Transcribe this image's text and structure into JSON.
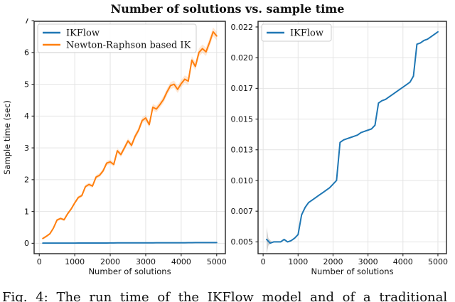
{
  "figure": {
    "title": "Number of solutions vs. sample time"
  },
  "caption": {
    "text": "Fig. 4: The run time of the IKFlow model and of a traditional"
  },
  "style": {
    "ikflow_color": "#1f77b4",
    "newton_color": "#ff7f0e",
    "grid_color": "#e4e4e4",
    "spine_color": "#222222",
    "text_color": "#111111",
    "orange_band_color": "rgba(255,127,14,0.18)",
    "gray_band_color": "rgba(120,120,120,0.35)"
  },
  "chart_data": [
    {
      "type": "line",
      "xlabel": "Number of solutions",
      "ylabel": "Sample time (sec)",
      "xlim": [
        -145,
        5245
      ],
      "ylim": [
        -0.327,
        6.98
      ],
      "grid": true,
      "legend_position": "upper-left",
      "x": [
        100,
        200,
        300,
        400,
        500,
        600,
        700,
        800,
        900,
        1000,
        1100,
        1200,
        1300,
        1400,
        1500,
        1600,
        1700,
        1800,
        1900,
        2000,
        2100,
        2200,
        2300,
        2400,
        2500,
        2600,
        2700,
        2800,
        2900,
        3000,
        3100,
        3200,
        3300,
        3400,
        3500,
        3600,
        3700,
        3800,
        3900,
        4000,
        4100,
        4200,
        4300,
        4400,
        4500,
        4600,
        4700,
        4800,
        4900,
        5000
      ],
      "xticks": {
        "values": [
          0,
          1000,
          2000,
          3000,
          4000,
          5000
        ],
        "labels": [
          "0",
          "1000",
          "2000",
          "3000",
          "4000",
          "5000"
        ]
      },
      "yticks": {
        "values": [
          0,
          1,
          2,
          3,
          4,
          5,
          6,
          7
        ],
        "labels": [
          "0",
          "1",
          "2",
          "3",
          "4",
          "5",
          "6",
          "7"
        ]
      },
      "series": [
        {
          "name": "IKFlow",
          "color": "#1f77b4",
          "values": [
            0.0052,
            0.0049,
            0.005,
            0.005,
            0.005,
            0.0052,
            0.005,
            0.0051,
            0.0053,
            0.0056,
            0.0072,
            0.0078,
            0.0082,
            0.0084,
            0.0086,
            0.0088,
            0.009,
            0.0092,
            0.0094,
            0.0097,
            0.01,
            0.0131,
            0.0133,
            0.0134,
            0.0135,
            0.0136,
            0.0137,
            0.0139,
            0.014,
            0.0141,
            0.0142,
            0.0145,
            0.0163,
            0.0165,
            0.0166,
            0.0168,
            0.017,
            0.0172,
            0.0174,
            0.0176,
            0.0178,
            0.018,
            0.0185,
            0.0211,
            0.0212,
            0.0214,
            0.0215,
            0.0217,
            0.0219,
            0.0221
          ]
        },
        {
          "name": "Newton-Raphson based IK",
          "color": "#ff7f0e",
          "values": [
            0.15,
            0.22,
            0.3,
            0.48,
            0.73,
            0.78,
            0.74,
            0.93,
            1.08,
            1.27,
            1.44,
            1.5,
            1.78,
            1.85,
            1.8,
            2.08,
            2.14,
            2.28,
            2.52,
            2.56,
            2.48,
            2.91,
            2.79,
            3.0,
            3.22,
            3.08,
            3.36,
            3.56,
            3.86,
            3.94,
            3.73,
            4.28,
            4.22,
            4.36,
            4.52,
            4.76,
            4.96,
            5.0,
            4.84,
            5.02,
            5.16,
            5.1,
            5.76,
            5.56,
            6.0,
            6.12,
            6.02,
            6.32,
            6.65,
            6.52
          ]
        }
      ],
      "bands": [
        {
          "series": 1,
          "hw_start": 0.03,
          "hw_end": 0.14,
          "color": "rgba(255,127,14,0.18)"
        }
      ],
      "legend": [
        "IKFlow",
        "Newton-Raphson based IK"
      ]
    },
    {
      "type": "line",
      "xlabel": "Number of solutions",
      "ylabel": "",
      "xlim": [
        -145,
        5245
      ],
      "ylim": [
        0.00404,
        0.02296
      ],
      "grid": true,
      "legend_position": "upper-left",
      "x": [
        100,
        200,
        300,
        400,
        500,
        600,
        700,
        800,
        900,
        1000,
        1100,
        1200,
        1300,
        1400,
        1500,
        1600,
        1700,
        1800,
        1900,
        2000,
        2100,
        2200,
        2300,
        2400,
        2500,
        2600,
        2700,
        2800,
        2900,
        3000,
        3100,
        3200,
        3300,
        3400,
        3500,
        3600,
        3700,
        3800,
        3900,
        4000,
        4100,
        4200,
        4300,
        4400,
        4500,
        4600,
        4700,
        4800,
        4900,
        5000
      ],
      "xticks": {
        "values": [
          0,
          1000,
          2000,
          3000,
          4000,
          5000
        ],
        "labels": [
          "0",
          "1000",
          "2000",
          "3000",
          "4000",
          "5000"
        ]
      },
      "yticks": {
        "values": [
          0.005,
          0.0075,
          0.01,
          0.0125,
          0.015,
          0.0175,
          0.02,
          0.0225
        ],
        "labels": [
          "0.005",
          "0.007",
          "0.010",
          "0.013",
          "0.015",
          "0.017",
          "0.020",
          "0.022"
        ]
      },
      "series": [
        {
          "name": "IKFlow",
          "color": "#1f77b4",
          "values": [
            0.0052,
            0.0049,
            0.005,
            0.005,
            0.005,
            0.0052,
            0.005,
            0.0051,
            0.0053,
            0.0056,
            0.0072,
            0.0078,
            0.0082,
            0.0084,
            0.0086,
            0.0088,
            0.009,
            0.0092,
            0.0094,
            0.0097,
            0.01,
            0.0131,
            0.0133,
            0.0134,
            0.0135,
            0.0136,
            0.0137,
            0.0139,
            0.014,
            0.0141,
            0.0142,
            0.0145,
            0.0163,
            0.0165,
            0.0166,
            0.0168,
            0.017,
            0.0172,
            0.0174,
            0.0176,
            0.0178,
            0.018,
            0.0185,
            0.0211,
            0.0212,
            0.0214,
            0.0215,
            0.0217,
            0.0219,
            0.0221
          ]
        }
      ],
      "bands": [
        {
          "x": [
            100,
            150,
            250
          ],
          "lo": [
            0.004,
            0.0047,
            0.005
          ],
          "hi": [
            0.0062,
            0.0053,
            0.005
          ],
          "color": "rgba(120,120,120,0.35)"
        }
      ],
      "legend": [
        "IKFlow"
      ]
    }
  ]
}
